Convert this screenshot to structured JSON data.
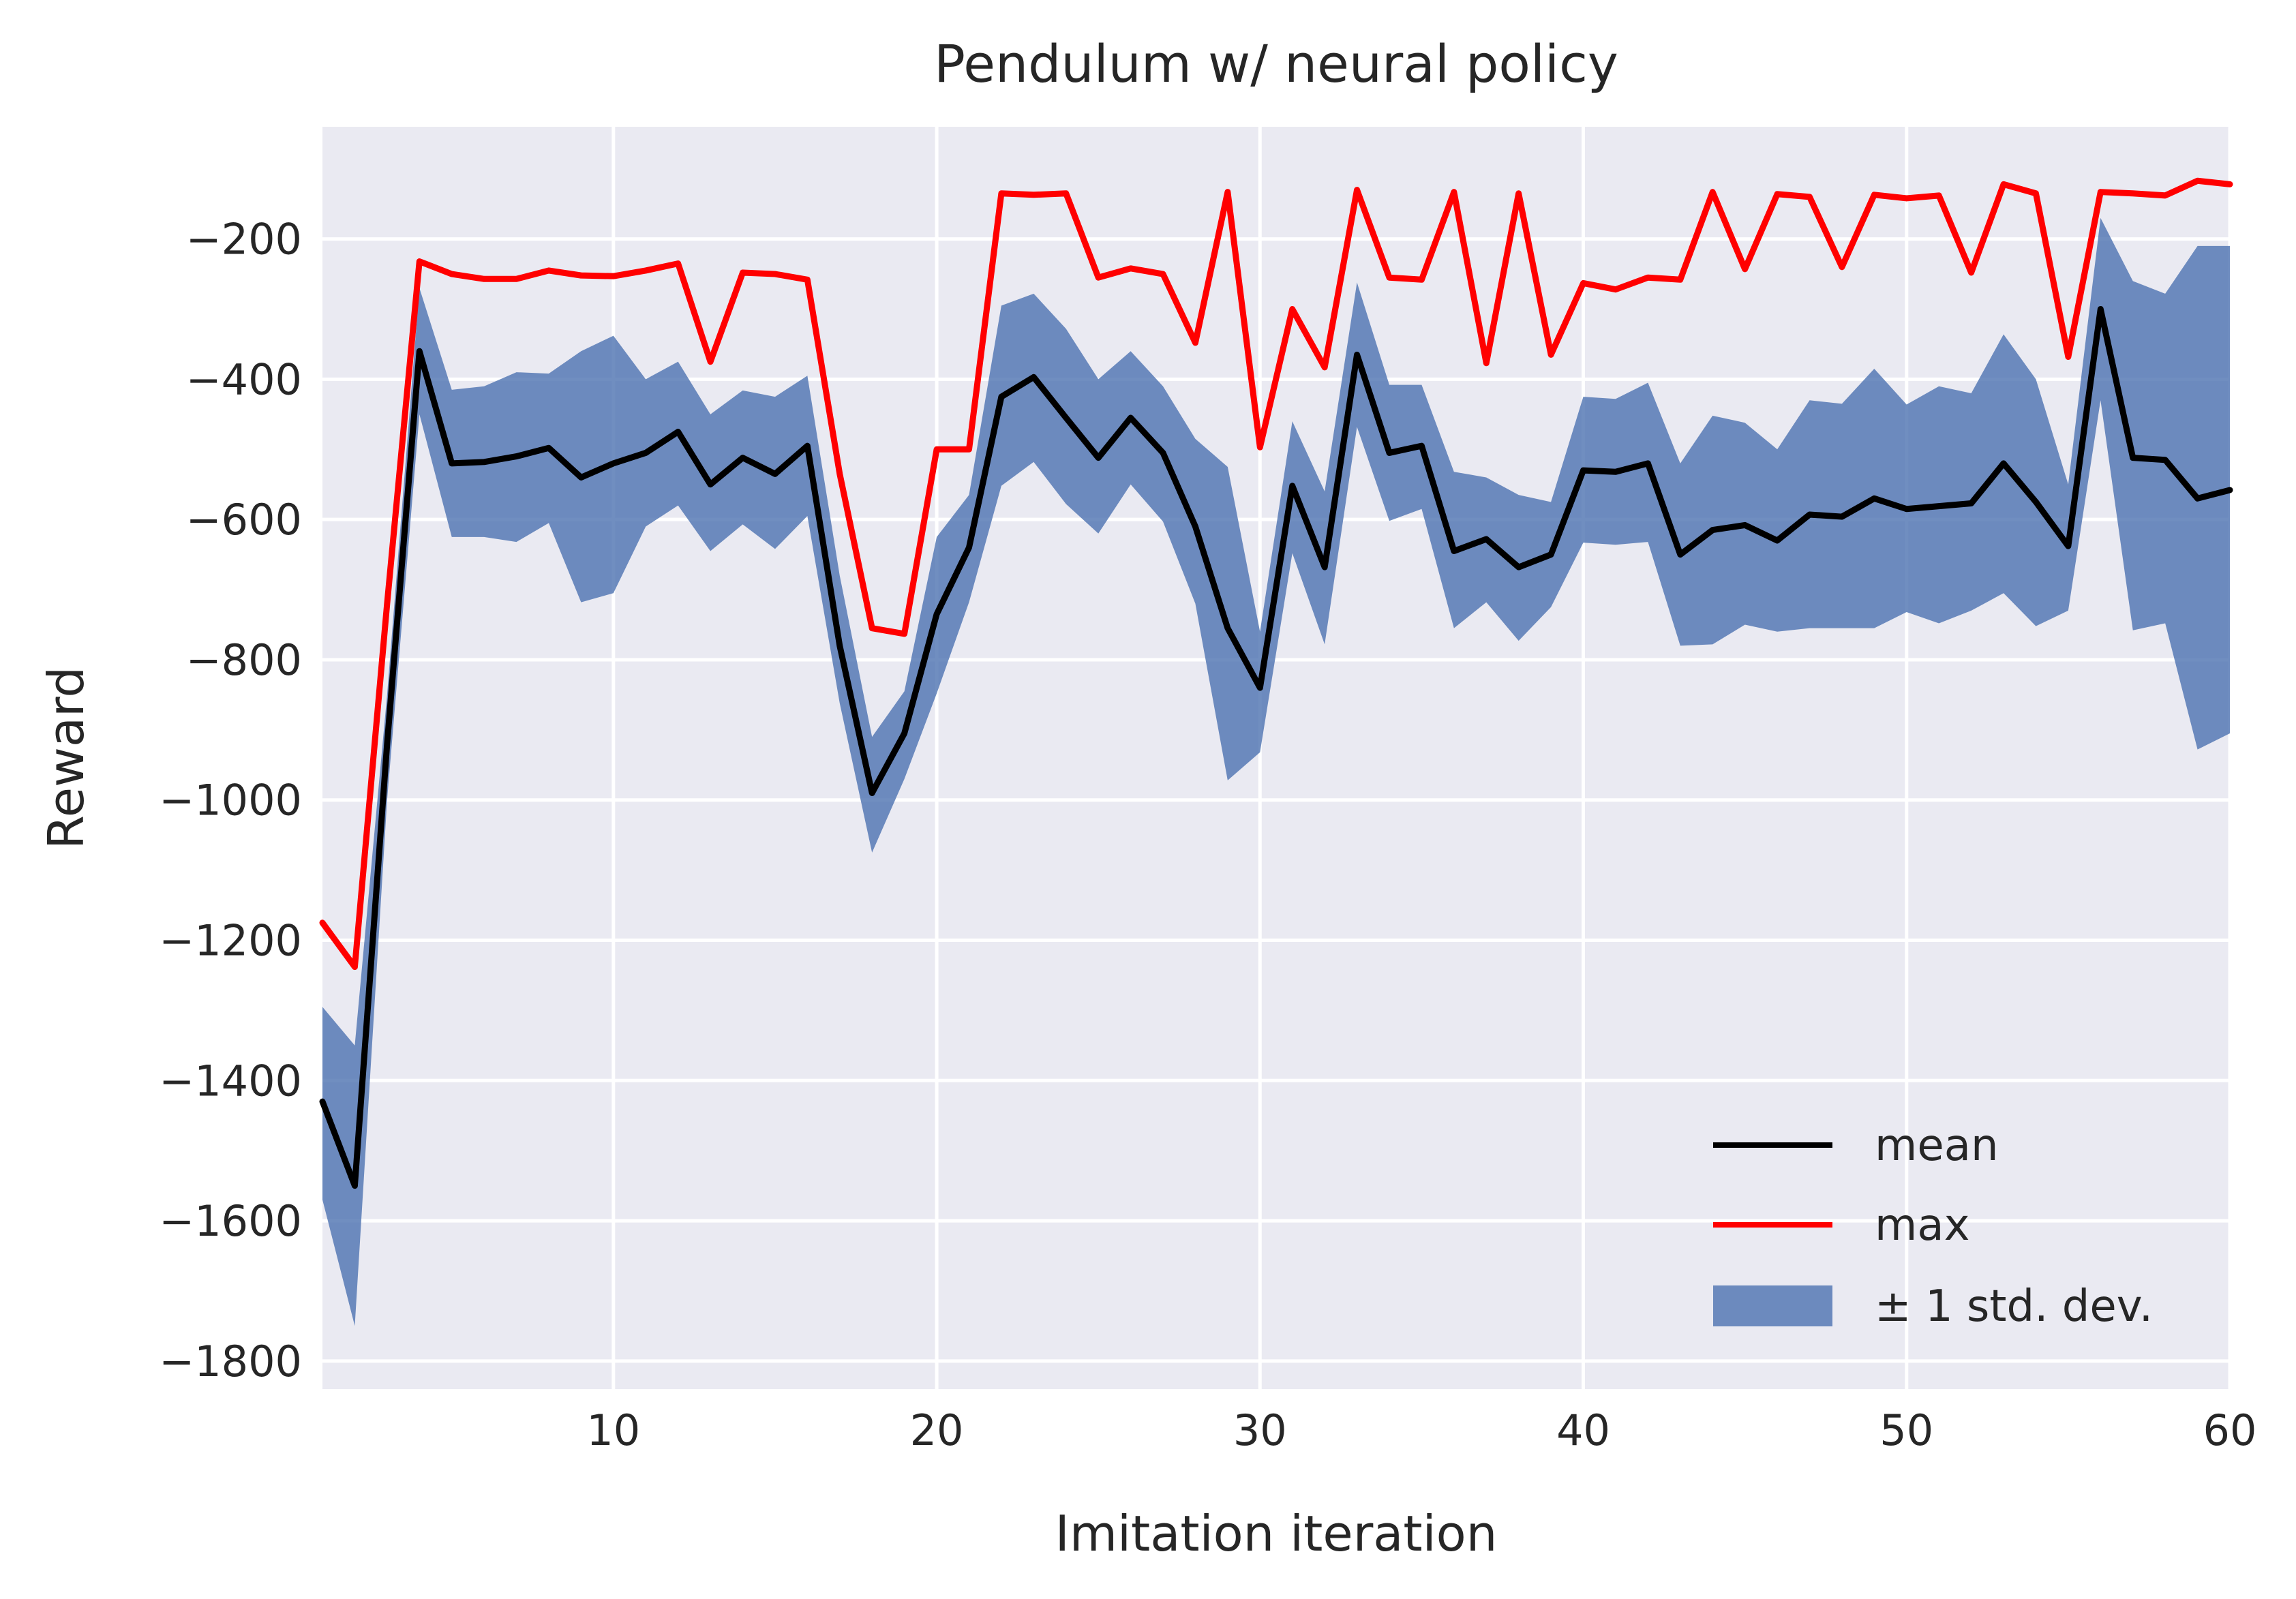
{
  "chart_data": {
    "type": "line",
    "title": "Pendulum w/ neural policy",
    "xlabel": "Imitation iteration",
    "ylabel": "Reward",
    "xlim": [
      1,
      60
    ],
    "ylim": [
      -1840,
      -40
    ],
    "x_ticks": [
      10,
      20,
      30,
      40,
      50,
      60
    ],
    "y_ticks": [
      -200,
      -400,
      -600,
      -800,
      -1000,
      -1200,
      -1400,
      -1600,
      -1800
    ],
    "x_tick_labels": [
      "10",
      "20",
      "30",
      "40",
      "50",
      "60"
    ],
    "y_tick_labels": [
      "−200",
      "−400",
      "−600",
      "−800",
      "−1000",
      "−1200",
      "−1400",
      "−1600",
      "−1800"
    ],
    "grid": true,
    "legend_position": "lower-right",
    "x": [
      1,
      2,
      3,
      4,
      5,
      6,
      7,
      8,
      9,
      10,
      11,
      12,
      13,
      14,
      15,
      16,
      17,
      18,
      19,
      20,
      21,
      22,
      23,
      24,
      25,
      26,
      27,
      28,
      29,
      30,
      31,
      32,
      33,
      34,
      35,
      36,
      37,
      38,
      39,
      40,
      41,
      42,
      43,
      44,
      45,
      46,
      47,
      48,
      49,
      50,
      51,
      52,
      53,
      54,
      55,
      56,
      57,
      58,
      59,
      60
    ],
    "series": [
      {
        "name": "mean",
        "color": "#000000",
        "values": [
          -1430,
          -1550,
          -920,
          -360,
          -520,
          -518,
          -510,
          -498,
          -540,
          -520,
          -505,
          -475,
          -550,
          -512,
          -535,
          -495,
          -780,
          -990,
          -905,
          -735,
          -640,
          -425,
          -397,
          -455,
          -512,
          -455,
          -505,
          -610,
          -755,
          -840,
          -552,
          -668,
          -365,
          -505,
          -495,
          -645,
          -628,
          -668,
          -650,
          -530,
          -532,
          -520,
          -650,
          -615,
          -608,
          -630,
          -593,
          -596,
          -570,
          -585,
          -581,
          -577,
          -520,
          -575,
          -638,
          -300,
          -512,
          -515,
          -570,
          -558
        ]
      },
      {
        "name": "max",
        "color": "#ff0000",
        "values": [
          -1175,
          -1238,
          -720,
          -232,
          -250,
          -257,
          -257,
          -245,
          -252,
          -253,
          -245,
          -235,
          -375,
          -248,
          -250,
          -258,
          -535,
          -755,
          -763,
          -500,
          -500,
          -135,
          -137,
          -135,
          -255,
          -242,
          -250,
          -348,
          -133,
          -497,
          -300,
          -383,
          -130,
          -255,
          -258,
          -133,
          -377,
          -135,
          -365,
          -263,
          -272,
          -255,
          -258,
          -133,
          -243,
          -136,
          -140,
          -240,
          -137,
          -142,
          -138,
          -248,
          -122,
          -135,
          -368,
          -133,
          -135,
          -138,
          -117,
          -122
        ]
      },
      {
        "name": "± 1 std. dev.",
        "color": "#4c72b0",
        "opacity": 0.8,
        "upper": [
          -1295,
          -1350,
          -850,
          -270,
          -415,
          -410,
          -390,
          -392,
          -360,
          -338,
          -400,
          -375,
          -450,
          -416,
          -425,
          -395,
          -680,
          -910,
          -845,
          -625,
          -565,
          -295,
          -278,
          -328,
          -400,
          -360,
          -410,
          -485,
          -525,
          -760,
          -460,
          -560,
          -262,
          -408,
          -408,
          -532,
          -540,
          -565,
          -575,
          -425,
          -428,
          -405,
          -520,
          -452,
          -462,
          -500,
          -430,
          -435,
          -385,
          -436,
          -410,
          -420,
          -336,
          -400,
          -550,
          -170,
          -260,
          -278,
          -210,
          -210
        ],
        "lower": [
          -1570,
          -1750,
          -1000,
          -450,
          -625,
          -625,
          -632,
          -605,
          -718,
          -705,
          -610,
          -580,
          -645,
          -607,
          -642,
          -595,
          -862,
          -1075,
          -970,
          -848,
          -718,
          -552,
          -518,
          -578,
          -620,
          -550,
          -603,
          -720,
          -972,
          -932,
          -648,
          -778,
          -468,
          -602,
          -585,
          -755,
          -718,
          -773,
          -725,
          -633,
          -636,
          -632,
          -780,
          -778,
          -750,
          -760,
          -755,
          -755,
          -755,
          -732,
          -748,
          -730,
          -705,
          -752,
          -730,
          -430,
          -758,
          -748,
          -928,
          -905
        ]
      }
    ]
  }
}
